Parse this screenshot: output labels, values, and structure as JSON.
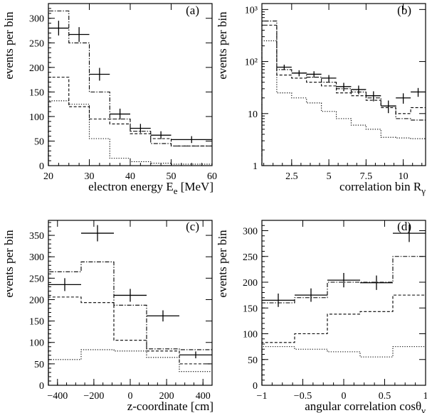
{
  "chart_data": [
    {
      "id": "a",
      "type": "histogram",
      "panel_label": "(a)",
      "xlabel": "electron energy E",
      "xlabel_sub": "e",
      "xlabel_suffix": " [MeV]",
      "ylabel": "events per bin",
      "yscale": "linear",
      "xlim": [
        20,
        60
      ],
      "ylim": [
        0,
        330
      ],
      "xticks": [
        20,
        30,
        40,
        50,
        60
      ],
      "xtick_labels": [
        "20",
        "30",
        "40",
        "50",
        "60"
      ],
      "yticks": [
        0,
        50,
        100,
        150,
        200,
        250,
        300
      ],
      "ytick_labels": [
        "0",
        "50",
        "100",
        "150",
        "200",
        "250",
        "300"
      ],
      "bin_edges": [
        20,
        25,
        30,
        35,
        40,
        45,
        50,
        60
      ],
      "series": [
        {
          "name": "dash-dot",
          "style": "dashdot",
          "values": [
            315,
            250,
            150,
            95,
            70,
            45,
            40
          ]
        },
        {
          "name": "dashed",
          "style": "dashed",
          "values": [
            180,
            120,
            95,
            85,
            65,
            55,
            40
          ]
        },
        {
          "name": "dotted",
          "style": "dotted",
          "values": [
            132,
            125,
            55,
            15,
            8,
            5,
            3
          ]
        }
      ],
      "points": [
        {
          "x": 22.5,
          "y": 280,
          "xerr": 2.5,
          "yerr": 15
        },
        {
          "x": 27.5,
          "y": 267,
          "xerr": 2.5,
          "yerr": 15
        },
        {
          "x": 32.5,
          "y": 186,
          "xerr": 2.5,
          "yerr": 13
        },
        {
          "x": 37.5,
          "y": 105,
          "xerr": 2.5,
          "yerr": 11
        },
        {
          "x": 42.5,
          "y": 76,
          "xerr": 2.5,
          "yerr": 9
        },
        {
          "x": 47.5,
          "y": 62,
          "xerr": 2.5,
          "yerr": 8
        },
        {
          "x": 55,
          "y": 53,
          "xerr": 5,
          "yerr": 7
        }
      ]
    },
    {
      "id": "b",
      "type": "histogram",
      "panel_label": "(b)",
      "xlabel": "correlation bin R",
      "xlabel_sub": "γ",
      "xlabel_suffix": "",
      "ylabel": "events per bin",
      "yscale": "log",
      "xlim": [
        0.5,
        11.5
      ],
      "ylim": [
        1,
        1300
      ],
      "xticks": [
        2.5,
        5,
        7.5,
        10
      ],
      "xtick_labels": [
        "2.5",
        "5",
        "7.5",
        "10"
      ],
      "yticks": [
        1,
        10,
        100,
        1000
      ],
      "ytick_labels": [
        "1",
        "10",
        "10²",
        "10³"
      ],
      "bin_edges": [
        0.5,
        1.5,
        2.5,
        3.5,
        4.5,
        5.5,
        6.5,
        7.5,
        8.5,
        9.5,
        10.5,
        11.5
      ],
      "series": [
        {
          "name": "dash-dot",
          "style": "dashdot",
          "values": [
            600,
            70,
            60,
            50,
            40,
            30,
            26,
            20,
            14,
            8,
            7.5
          ]
        },
        {
          "name": "dashed",
          "style": "dashed",
          "values": [
            500,
            55,
            48,
            40,
            34,
            25,
            22,
            18,
            13,
            10,
            13
          ]
        },
        {
          "name": "dotted",
          "style": "dotted",
          "values": [
            250,
            25,
            20,
            16,
            11,
            8,
            6,
            5,
            3.5,
            3.4,
            3.3
          ]
        }
      ],
      "points": [
        {
          "x": 2.0,
          "y": 78,
          "xerr": 0.5,
          "yerr": 9
        },
        {
          "x": 3.0,
          "y": 60,
          "xerr": 0.5,
          "yerr": 8
        },
        {
          "x": 4.0,
          "y": 57,
          "xerr": 0.5,
          "yerr": 8
        },
        {
          "x": 5.0,
          "y": 48,
          "xerr": 0.5,
          "yerr": 7
        },
        {
          "x": 6.0,
          "y": 33,
          "xerr": 0.5,
          "yerr": 6
        },
        {
          "x": 7.0,
          "y": 29,
          "xerr": 0.5,
          "yerr": 5.5
        },
        {
          "x": 8.0,
          "y": 22,
          "xerr": 0.5,
          "yerr": 4.8
        },
        {
          "x": 9.0,
          "y": 14,
          "xerr": 0.5,
          "yerr": 3.8
        },
        {
          "x": 10.0,
          "y": 20,
          "xerr": 0.5,
          "yerr": 4.5
        },
        {
          "x": 11.0,
          "y": 26,
          "xerr": 0.5,
          "yerr": 5
        }
      ]
    },
    {
      "id": "c",
      "type": "histogram",
      "panel_label": "(c)",
      "xlabel": "z-coordinate [cm]",
      "xlabel_sub": "",
      "xlabel_suffix": "",
      "ylabel": "events per bin",
      "yscale": "linear",
      "xlim": [
        -450,
        450
      ],
      "ylim": [
        0,
        385
      ],
      "xticks": [
        -400,
        -200,
        0,
        200,
        400
      ],
      "xtick_labels": [
        "−400",
        "−200",
        "0",
        "200",
        "400"
      ],
      "yticks": [
        0,
        50,
        100,
        150,
        200,
        250,
        300,
        350
      ],
      "ytick_labels": [
        "0",
        "50",
        "100",
        "150",
        "200",
        "250",
        "300",
        "350"
      ],
      "bin_edges": [
        -450,
        -270,
        -90,
        90,
        270,
        450
      ],
      "series": [
        {
          "name": "dash-dot",
          "style": "dashdot",
          "values": [
            265,
            288,
            187,
            85,
            83
          ]
        },
        {
          "name": "dashed",
          "style": "dashed",
          "values": [
            206,
            193,
            105,
            80,
            50
          ]
        },
        {
          "name": "dotted",
          "style": "dotted",
          "values": [
            60,
            83,
            80,
            65,
            32
          ]
        }
      ],
      "points": [
        {
          "x": -360,
          "y": 235,
          "xerr": 90,
          "yerr": 15
        },
        {
          "x": -180,
          "y": 355,
          "xerr": 90,
          "yerr": 19
        },
        {
          "x": 0,
          "y": 210,
          "xerr": 90,
          "yerr": 15
        },
        {
          "x": 180,
          "y": 162,
          "xerr": 90,
          "yerr": 13
        },
        {
          "x": 360,
          "y": 71,
          "xerr": 90,
          "yerr": 8
        }
      ]
    },
    {
      "id": "d",
      "type": "histogram",
      "panel_label": "(d)",
      "xlabel": "angular correlation cosθ",
      "xlabel_sub": "ν",
      "xlabel_suffix": "",
      "ylabel": "events per bin",
      "yscale": "linear",
      "xlim": [
        -1,
        1
      ],
      "ylim": [
        0,
        320
      ],
      "xticks": [
        -1,
        -0.5,
        0,
        0.5,
        1
      ],
      "xtick_labels": [
        "−1",
        "−0.5",
        "0",
        "0.5",
        "1"
      ],
      "yticks": [
        0,
        50,
        100,
        150,
        200,
        250,
        300
      ],
      "ytick_labels": [
        "0",
        "50",
        "100",
        "150",
        "200",
        "250",
        "300"
      ],
      "bin_edges": [
        -1,
        -0.6,
        -0.2,
        0.2,
        0.6,
        1
      ],
      "series": [
        {
          "name": "dash-dot",
          "style": "dashdot",
          "values": [
            160,
            170,
            200,
            200,
            250
          ]
        },
        {
          "name": "dashed",
          "style": "dashed",
          "values": [
            83,
            100,
            138,
            143,
            175
          ]
        },
        {
          "name": "dotted",
          "style": "dotted",
          "values": [
            75,
            70,
            65,
            55,
            75
          ]
        }
      ],
      "points": [
        {
          "x": -0.8,
          "y": 165,
          "xerr": 0.2,
          "yerr": 13
        },
        {
          "x": -0.4,
          "y": 175,
          "xerr": 0.2,
          "yerr": 13
        },
        {
          "x": 0.0,
          "y": 204,
          "xerr": 0.2,
          "yerr": 14
        },
        {
          "x": 0.4,
          "y": 199,
          "xerr": 0.2,
          "yerr": 14
        },
        {
          "x": 0.8,
          "y": 295,
          "xerr": 0.2,
          "yerr": 17
        }
      ]
    }
  ]
}
